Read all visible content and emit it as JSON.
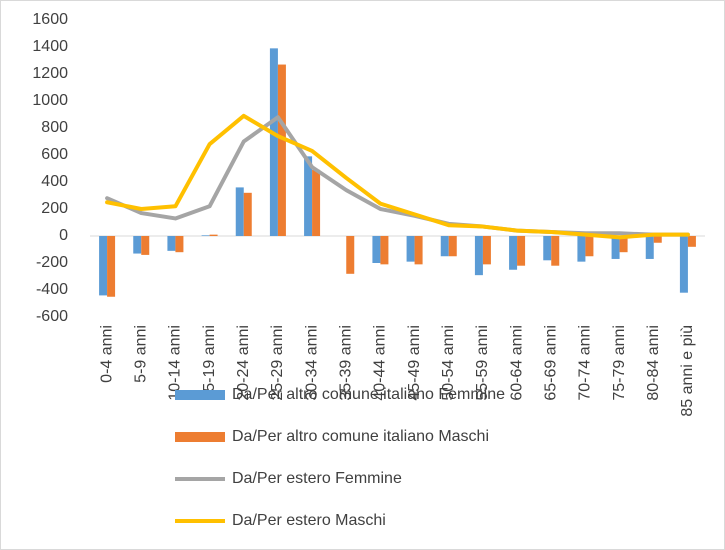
{
  "chart_data": {
    "type": "bar",
    "categories": [
      "0-4 anni",
      "5-9 anni",
      "10-14 anni",
      "15-19 anni",
      "20-24 anni",
      "25-29 anni",
      "30-34 anni",
      "35-39 anni",
      "40-44 anni",
      "45-49 anni",
      "50-54 anni",
      "55-59 anni",
      "60-64 anni",
      "65-69 anni",
      "70-74 anni",
      "75-79 anni",
      "80-84 anni",
      "85 anni e più"
    ],
    "series": [
      {
        "name": "Da/Per altro comune italiano Femmine",
        "type": "bar",
        "color": "#5b9bd5",
        "values": [
          -440,
          -130,
          -110,
          5,
          360,
          1390,
          590,
          0,
          -200,
          -190,
          -150,
          -290,
          -250,
          -180,
          -190,
          -170,
          -170,
          -420
        ]
      },
      {
        "name": "Da/Per altro comune italiano Maschi",
        "type": "bar",
        "color": "#ed7d31",
        "values": [
          -450,
          -140,
          -120,
          10,
          320,
          1270,
          490,
          -280,
          -210,
          -210,
          -150,
          -210,
          -220,
          -220,
          -150,
          -120,
          -50,
          -80
        ]
      },
      {
        "name": "Da/Per estero Femmine",
        "type": "line",
        "color": "#a5a5a5",
        "values": [
          280,
          170,
          130,
          220,
          700,
          880,
          510,
          340,
          200,
          150,
          90,
          70,
          40,
          30,
          20,
          20,
          10,
          10
        ]
      },
      {
        "name": "Da/Per estero Maschi",
        "type": "line",
        "color": "#ffc000",
        "values": [
          250,
          200,
          220,
          680,
          890,
          740,
          630,
          430,
          240,
          160,
          80,
          70,
          40,
          30,
          10,
          -10,
          10,
          10
        ]
      }
    ],
    "ylim": [
      -600,
      1600
    ],
    "yticks": [
      -600,
      -400,
      -200,
      0,
      200,
      400,
      600,
      800,
      1000,
      1200,
      1400,
      1600
    ],
    "grid": false,
    "legend": "bottom"
  }
}
